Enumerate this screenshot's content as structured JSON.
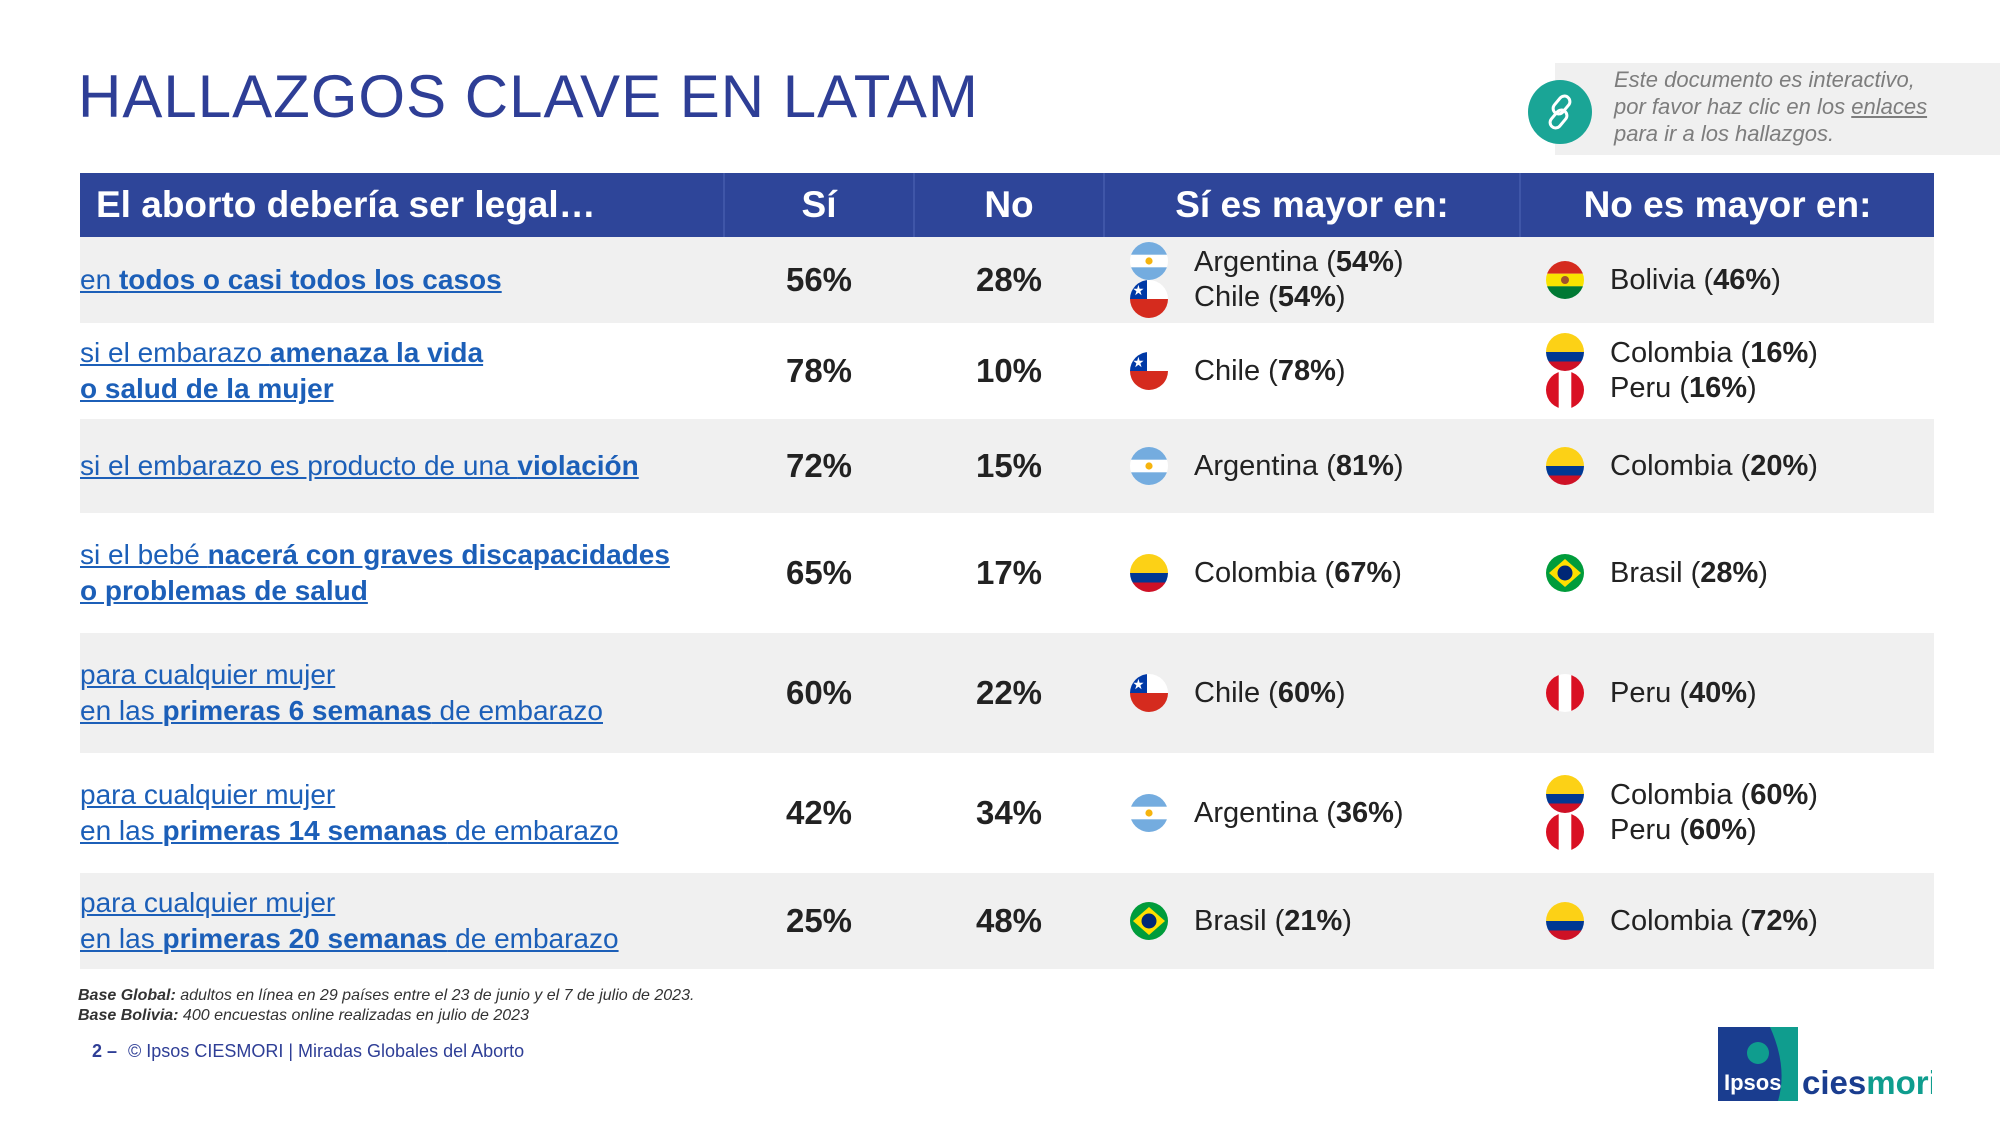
{
  "title": "HALLAZGOS CLAVE EN LATAM",
  "note": {
    "line1": "Este documento es interactivo,",
    "line2_pre": "por favor haz clic en los ",
    "line2_link": "enlaces",
    "line3": "para ir a los hallazgos.",
    "icon": "link-icon"
  },
  "table": {
    "headers": [
      "El aborto debería ser legal…",
      "Sí",
      "No",
      "Sí es mayor en:",
      "No es mayor en:"
    ],
    "rows": [
      {
        "q": [
          {
            "t": "en "
          },
          {
            "t": "todos o casi todos los casos",
            "b": true
          }
        ],
        "si": "56%",
        "no": "28%",
        "mayor_si": [
          {
            "country": "Argentina",
            "pct": "54%",
            "flag": "argentina"
          },
          {
            "country": "Chile",
            "pct": "54%",
            "flag": "chile"
          }
        ],
        "mayor_no": [
          {
            "country": "Bolivia",
            "pct": "46%",
            "flag": "bolivia"
          }
        ]
      },
      {
        "q": [
          {
            "t": "si el embarazo "
          },
          {
            "t": "amenaza la vida",
            "b": true
          },
          {
            "br": true
          },
          {
            "t": "o salud de la mujer",
            "b": true
          }
        ],
        "si": "78%",
        "no": "10%",
        "mayor_si": [
          {
            "country": "Chile",
            "pct": "78%",
            "flag": "chile"
          }
        ],
        "mayor_no": [
          {
            "country": "Colombia",
            "pct": "16%",
            "flag": "colombia"
          },
          {
            "country": "Peru",
            "pct": "16%",
            "flag": "peru"
          }
        ]
      },
      {
        "q": [
          {
            "t": "si el embarazo es producto de una "
          },
          {
            "t": "violación",
            "b": true
          }
        ],
        "si": "72%",
        "no": "15%",
        "mayor_si": [
          {
            "country": "Argentina",
            "pct": "81%",
            "flag": "argentina"
          }
        ],
        "mayor_no": [
          {
            "country": "Colombia",
            "pct": "20%",
            "flag": "colombia"
          }
        ]
      },
      {
        "q": [
          {
            "t": "si el bebé "
          },
          {
            "t": "nacerá con graves discapacidades",
            "b": true
          },
          {
            "br": true
          },
          {
            "t": "o problemas de salud",
            "b": true
          }
        ],
        "si": "65%",
        "no": "17%",
        "mayor_si": [
          {
            "country": "Colombia",
            "pct": "67%",
            "flag": "colombia"
          }
        ],
        "mayor_no": [
          {
            "country": "Brasil",
            "pct": "28%",
            "flag": "brasil"
          }
        ]
      },
      {
        "q": [
          {
            "t": "para cualquier mujer"
          },
          {
            "br": true
          },
          {
            "t": "en las "
          },
          {
            "t": "primeras 6 semanas",
            "b": true
          },
          {
            "t": " de embarazo"
          }
        ],
        "si": "60%",
        "no": "22%",
        "mayor_si": [
          {
            "country": "Chile",
            "pct": "60%",
            "flag": "chile"
          }
        ],
        "mayor_no": [
          {
            "country": "Peru",
            "pct": "40%",
            "flag": "peru"
          }
        ]
      },
      {
        "q": [
          {
            "t": "para cualquier mujer"
          },
          {
            "br": true
          },
          {
            "t": "en las "
          },
          {
            "t": "primeras 14 semanas",
            "b": true
          },
          {
            "t": " de embarazo"
          }
        ],
        "si": "42%",
        "no": "34%",
        "mayor_si": [
          {
            "country": "Argentina",
            "pct": "36%",
            "flag": "argentina"
          }
        ],
        "mayor_no": [
          {
            "country": "Colombia",
            "pct": "60%",
            "flag": "colombia"
          },
          {
            "country": "Peru",
            "pct": "60%",
            "flag": "peru"
          }
        ]
      },
      {
        "q": [
          {
            "t": "para cualquier mujer"
          },
          {
            "br": true
          },
          {
            "t": "en las "
          },
          {
            "t": "primeras 20 semanas",
            "b": true
          },
          {
            "t": " de embarazo"
          }
        ],
        "si": "25%",
        "no": "48%",
        "mayor_si": [
          {
            "country": "Brasil",
            "pct": "21%",
            "flag": "brasil"
          }
        ],
        "mayor_no": [
          {
            "country": "Colombia",
            "pct": "72%",
            "flag": "colombia"
          }
        ]
      }
    ]
  },
  "footer": {
    "base_global_label": "Base Global:",
    "base_global_text": " adultos en línea en 29 países entre el 23 de junio y el 7 de julio de 2023.",
    "base_bolivia_label": "Base Bolivia:",
    "base_bolivia_text": " 400 encuestas online realizadas en julio de 2023",
    "page_num": "2",
    "page_sep": " – ",
    "copyright": "© Ipsos CIESMORI | Miradas Globales del Aborto"
  },
  "logo": {
    "ipsos": "Ipsos",
    "cies": "cies",
    "mori": "mori"
  },
  "colors": {
    "header_bg": "#2e4599",
    "title": "#2e3e96",
    "link": "#1c5fb8",
    "shade": "#f0f0f0",
    "ipsos_teal": "#0f9d8e",
    "mori_teal": "#0f9d8e"
  }
}
